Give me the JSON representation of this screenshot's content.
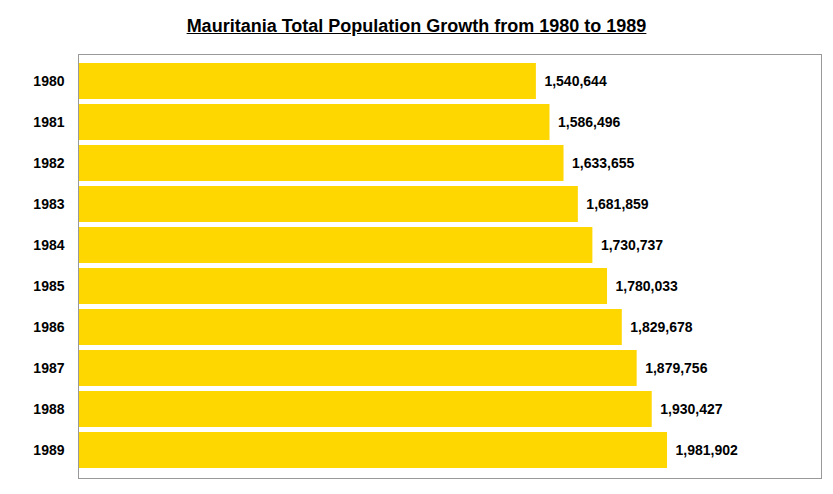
{
  "chart_data": {
    "type": "bar",
    "title": "Mauritania Total Population Growth from 1980 to 1989",
    "orientation": "horizontal",
    "categories": [
      "1980",
      "1981",
      "1982",
      "1983",
      "1984",
      "1985",
      "1986",
      "1987",
      "1988",
      "1989"
    ],
    "values": [
      1540644,
      1586496,
      1633655,
      1681859,
      1730737,
      1780033,
      1829678,
      1879756,
      1930427,
      1981902
    ],
    "value_labels": [
      "1,540,644",
      "1,586,496",
      "1,633,655",
      "1,681,859",
      "1,730,737",
      "1,780,033",
      "1,829,678",
      "1,879,756",
      "1,930,427",
      "1,981,902"
    ],
    "color": "#FFD700",
    "xlim": [
      0,
      2500000
    ],
    "data_labels": true,
    "tick_labels": "y"
  }
}
